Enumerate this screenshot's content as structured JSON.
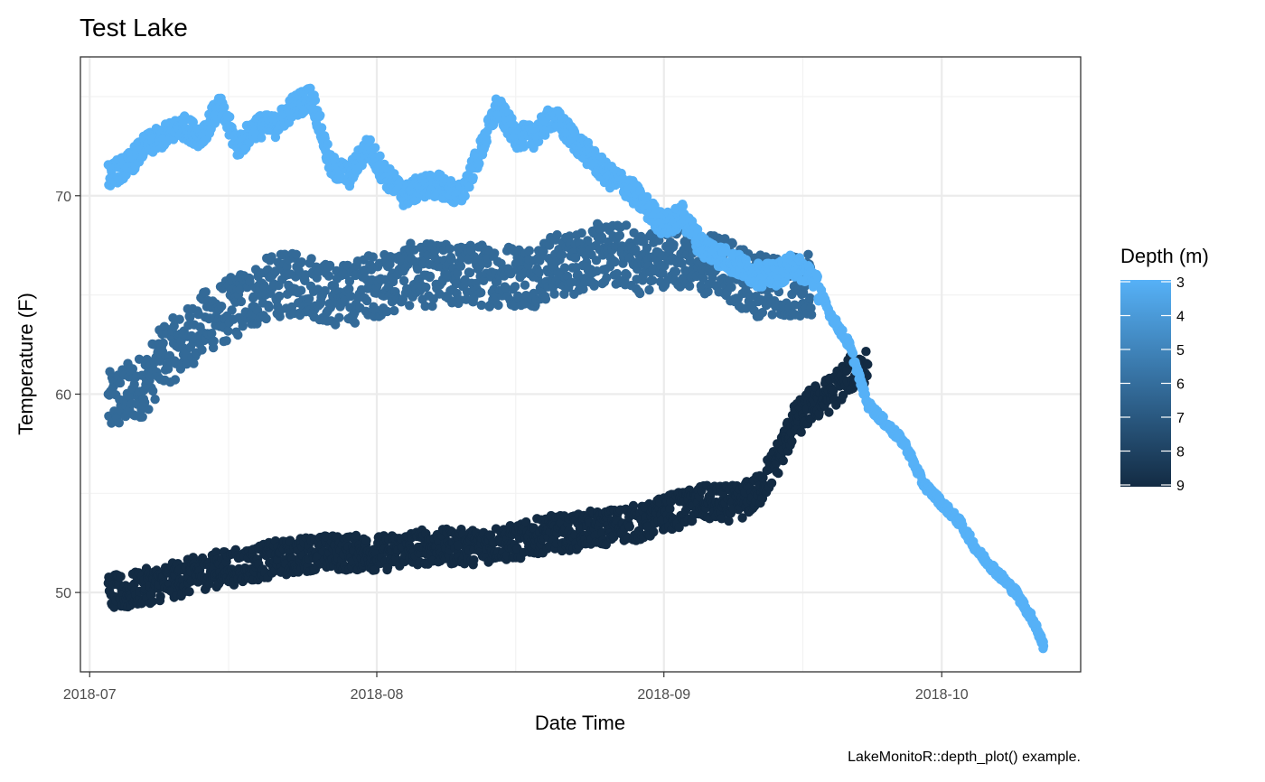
{
  "chart_data": {
    "type": "scatter",
    "title": "Test Lake",
    "xlabel": "Date Time",
    "ylabel": "Temperature (F)",
    "caption": "LakeMonitoR::depth_plot() example.",
    "xlim": [
      "2018-06-30",
      "2018-10-16"
    ],
    "ylim": [
      46,
      77
    ],
    "x_ticks": [
      "2018-07-01",
      "2018-08-01",
      "2018-09-01",
      "2018-10-01"
    ],
    "x_tick_labels": [
      "2018-07",
      "2018-08",
      "2018-09",
      "2018-10"
    ],
    "y_ticks": [
      50,
      60,
      70
    ],
    "grid": true,
    "legend": {
      "title": "Depth (m)",
      "placement": "right",
      "type": "colorbar",
      "labels": [
        "3",
        "4",
        "5",
        "6",
        "7",
        "8",
        "9"
      ],
      "values": [
        3,
        4,
        5,
        6,
        7,
        8,
        9
      ],
      "color_low_depth": "#56b1f7",
      "color_high_depth": "#132b43"
    },
    "series": [
      {
        "depth": 3,
        "color": "#56b1f7",
        "x": [
          "2018-07-03",
          "2018-07-05",
          "2018-07-07",
          "2018-07-09",
          "2018-07-11",
          "2018-07-13",
          "2018-07-15",
          "2018-07-17",
          "2018-07-19",
          "2018-07-21",
          "2018-07-23",
          "2018-07-25",
          "2018-07-27",
          "2018-07-29",
          "2018-07-31",
          "2018-08-02",
          "2018-08-04",
          "2018-08-06",
          "2018-08-08",
          "2018-08-10",
          "2018-08-12",
          "2018-08-14",
          "2018-08-16",
          "2018-08-18",
          "2018-08-20",
          "2018-08-22",
          "2018-08-24",
          "2018-08-26",
          "2018-08-28",
          "2018-08-30",
          "2018-09-01",
          "2018-09-03",
          "2018-09-05",
          "2018-09-07",
          "2018-09-09",
          "2018-09-11",
          "2018-09-13",
          "2018-09-15",
          "2018-09-17",
          "2018-09-19",
          "2018-09-21",
          "2018-09-23",
          "2018-09-25",
          "2018-09-27",
          "2018-09-29",
          "2018-10-01",
          "2018-10-03",
          "2018-10-05",
          "2018-10-07",
          "2018-10-09",
          "2018-10-11",
          "2018-10-12"
        ],
        "y": [
          71.0,
          71.5,
          72.5,
          73.0,
          73.5,
          73.0,
          74.5,
          72.5,
          73.5,
          73.5,
          74.5,
          75.0,
          71.5,
          71.0,
          72.5,
          71.0,
          70.0,
          70.5,
          70.5,
          70.0,
          72.0,
          74.5,
          73.0,
          73.0,
          74.0,
          73.0,
          72.0,
          71.0,
          70.5,
          69.5,
          68.5,
          69.0,
          67.5,
          67.0,
          66.5,
          66.0,
          66.0,
          66.5,
          66.0,
          64.0,
          62.5,
          59.5,
          58.5,
          57.5,
          55.5,
          54.5,
          53.5,
          52.0,
          51.0,
          50.0,
          48.5,
          47.3
        ]
      },
      {
        "depth": 6,
        "color": "#336a98",
        "x": [
          "2018-07-03",
          "2018-07-05",
          "2018-07-07",
          "2018-07-09",
          "2018-07-11",
          "2018-07-13",
          "2018-07-15",
          "2018-07-17",
          "2018-07-19",
          "2018-07-21",
          "2018-07-23",
          "2018-07-25",
          "2018-07-27",
          "2018-07-29",
          "2018-07-31",
          "2018-08-02",
          "2018-08-04",
          "2018-08-06",
          "2018-08-08",
          "2018-08-10",
          "2018-08-12",
          "2018-08-14",
          "2018-08-16",
          "2018-08-18",
          "2018-08-20",
          "2018-08-22",
          "2018-08-24",
          "2018-08-26",
          "2018-08-28",
          "2018-08-30",
          "2018-09-01",
          "2018-09-03",
          "2018-09-05",
          "2018-09-07",
          "2018-09-09",
          "2018-09-11",
          "2018-09-13",
          "2018-09-15",
          "2018-09-17"
        ],
        "y": [
          59.5,
          60.0,
          60.5,
          62.0,
          62.5,
          63.5,
          64.0,
          64.5,
          65.0,
          65.5,
          65.5,
          65.5,
          65.0,
          65.0,
          65.5,
          65.5,
          66.0,
          66.0,
          66.0,
          66.0,
          66.0,
          66.0,
          66.0,
          66.0,
          66.5,
          66.5,
          67.0,
          67.0,
          67.0,
          66.5,
          67.0,
          67.0,
          66.5,
          66.5,
          66.0,
          65.5,
          65.5,
          65.5,
          65.5
        ]
      },
      {
        "depth": 9,
        "color": "#132b43",
        "x": [
          "2018-07-03",
          "2018-07-05",
          "2018-07-07",
          "2018-07-09",
          "2018-07-11",
          "2018-07-13",
          "2018-07-15",
          "2018-07-17",
          "2018-07-19",
          "2018-07-21",
          "2018-07-23",
          "2018-07-25",
          "2018-07-27",
          "2018-07-29",
          "2018-07-31",
          "2018-08-02",
          "2018-08-04",
          "2018-08-06",
          "2018-08-08",
          "2018-08-10",
          "2018-08-12",
          "2018-08-14",
          "2018-08-16",
          "2018-08-18",
          "2018-08-20",
          "2018-08-22",
          "2018-08-24",
          "2018-08-26",
          "2018-08-28",
          "2018-08-30",
          "2018-09-01",
          "2018-09-03",
          "2018-09-05",
          "2018-09-07",
          "2018-09-09",
          "2018-09-11",
          "2018-09-13",
          "2018-09-15",
          "2018-09-17",
          "2018-09-19",
          "2018-09-21",
          "2018-09-23"
        ],
        "y": [
          50.0,
          50.0,
          50.3,
          50.5,
          50.7,
          51.0,
          51.2,
          51.3,
          51.5,
          51.7,
          51.8,
          52.0,
          52.0,
          52.0,
          52.0,
          52.0,
          52.2,
          52.3,
          52.3,
          52.3,
          52.3,
          52.5,
          52.5,
          52.8,
          53.0,
          53.0,
          53.2,
          53.3,
          53.5,
          53.5,
          54.0,
          54.2,
          54.5,
          54.5,
          54.5,
          55.0,
          56.5,
          58.5,
          59.5,
          60.0,
          61.0,
          61.5
        ]
      }
    ]
  }
}
